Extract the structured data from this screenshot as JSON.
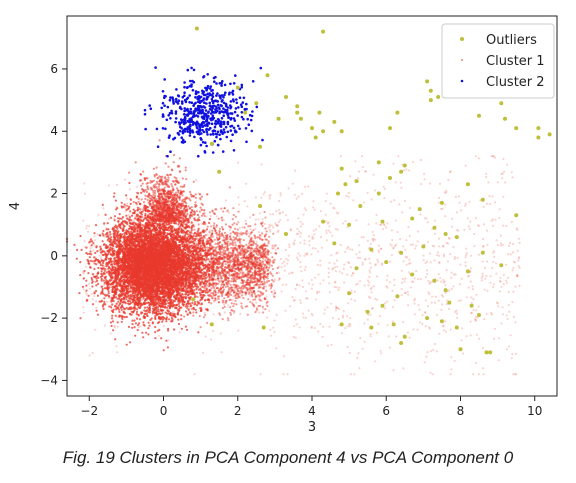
{
  "caption": "Fig. 19 Clusters in PCA Component 4 vs PCA Component 0",
  "chart_data": {
    "type": "scatter",
    "title": "",
    "xlabel": "3",
    "ylabel": "4",
    "xlim": [
      -2.6,
      10.6
    ],
    "ylim": [
      -4.5,
      7.7
    ],
    "xticks": [
      -2,
      0,
      2,
      4,
      6,
      8,
      10
    ],
    "yticks": [
      -4,
      -2,
      0,
      2,
      4,
      6
    ],
    "grid": false,
    "legend_position": "top-right",
    "series": [
      {
        "name": "Outliers",
        "color": "#bfbf3a",
        "marker": "dot",
        "points": [
          [
            0.9,
            7.3
          ],
          [
            4.3,
            7.2
          ],
          [
            2.8,
            5.8
          ],
          [
            7.1,
            5.6
          ],
          [
            7.2,
            5.3
          ],
          [
            7.2,
            5.0
          ],
          [
            7.4,
            5.1
          ],
          [
            8.5,
            4.5
          ],
          [
            9.1,
            4.9
          ],
          [
            9.2,
            4.4
          ],
          [
            9.5,
            4.1
          ],
          [
            10.1,
            4.1
          ],
          [
            10.1,
            3.8
          ],
          [
            10.4,
            3.9
          ],
          [
            3.3,
            5.1
          ],
          [
            3.6,
            4.8
          ],
          [
            3.1,
            4.4
          ],
          [
            3.6,
            4.6
          ],
          [
            3.7,
            4.4
          ],
          [
            4.2,
            4.6
          ],
          [
            4.0,
            4.1
          ],
          [
            4.3,
            4.0
          ],
          [
            4.6,
            4.3
          ],
          [
            4.8,
            4.0
          ],
          [
            4.1,
            3.8
          ],
          [
            6.1,
            4.1
          ],
          [
            6.3,
            4.6
          ],
          [
            2.2,
            4.6
          ],
          [
            2.5,
            4.9
          ],
          [
            2.0,
            5.4
          ],
          [
            1.3,
            3.6
          ],
          [
            1.5,
            2.7
          ],
          [
            2.6,
            3.5
          ],
          [
            4.8,
            2.8
          ],
          [
            5.2,
            2.4
          ],
          [
            5.8,
            3.0
          ],
          [
            6.5,
            2.9
          ],
          [
            4.9,
            2.3
          ],
          [
            6.1,
            2.5
          ],
          [
            6.4,
            2.7
          ],
          [
            4.7,
            2.0
          ],
          [
            5.3,
            1.6
          ],
          [
            5.8,
            2.0
          ],
          [
            6.9,
            1.5
          ],
          [
            7.5,
            1.7
          ],
          [
            8.6,
            1.8
          ],
          [
            9.5,
            1.3
          ],
          [
            4.3,
            1.1
          ],
          [
            5.0,
            1.0
          ],
          [
            5.9,
            1.1
          ],
          [
            6.7,
            1.2
          ],
          [
            7.3,
            0.9
          ],
          [
            7.6,
            0.7
          ],
          [
            4.6,
            0.4
          ],
          [
            5.6,
            0.2
          ],
          [
            6.4,
            0.1
          ],
          [
            7.0,
            0.3
          ],
          [
            7.9,
            0.6
          ],
          [
            8.6,
            0.1
          ],
          [
            5.2,
            -0.4
          ],
          [
            6.0,
            -0.2
          ],
          [
            6.7,
            -0.6
          ],
          [
            7.3,
            -0.8
          ],
          [
            8.2,
            -0.5
          ],
          [
            9.1,
            -0.3
          ],
          [
            5.0,
            -1.2
          ],
          [
            6.3,
            -1.3
          ],
          [
            7.6,
            -1.1
          ],
          [
            8.3,
            -1.6
          ],
          [
            7.7,
            -1.5
          ],
          [
            5.5,
            -1.8
          ],
          [
            5.9,
            -1.6
          ],
          [
            7.1,
            -2.0
          ],
          [
            7.5,
            -2.1
          ],
          [
            8.5,
            -1.9
          ],
          [
            4.8,
            -2.2
          ],
          [
            5.6,
            -2.3
          ],
          [
            6.2,
            -2.2
          ],
          [
            7.9,
            -2.3
          ],
          [
            6.5,
            -2.6
          ],
          [
            6.4,
            -2.8
          ],
          [
            8.0,
            -3.0
          ],
          [
            8.7,
            -3.1
          ],
          [
            8.8,
            -3.1
          ],
          [
            2.7,
            -2.3
          ],
          [
            1.3,
            -2.2
          ],
          [
            0.8,
            -1.4
          ],
          [
            3.3,
            0.7
          ],
          [
            2.6,
            1.6
          ],
          [
            8.2,
            2.3
          ]
        ]
      },
      {
        "name": "Cluster 1",
        "color": "#e8392e",
        "marker": "small-dot",
        "core": {
          "count": 7000,
          "center": [
            -0.3,
            -0.3
          ],
          "spread_x": 0.65,
          "spread_y": 0.75
        },
        "right_tail": {
          "count": 1800,
          "from_x": 0.5,
          "to_x": 2.8,
          "y_mean": -0.3,
          "y_spread": 0.8
        },
        "upper_spike": {
          "count": 900,
          "center": [
            0.1,
            1.5
          ],
          "spread_x": 0.35,
          "spread_y": 0.7
        },
        "halo": {
          "count": 1500,
          "x_range": [
            -2.2,
            9.6
          ],
          "y_range": [
            -3.8,
            3.2
          ]
        }
      },
      {
        "name": "Cluster 2",
        "color": "#1010e0",
        "marker": "dot",
        "count": 520,
        "center": [
          1.1,
          4.6
        ],
        "spread_x": 0.55,
        "spread_y": 0.55,
        "x_range": [
          -0.5,
          4.2
        ],
        "y_range": [
          3.2,
          6.3
        ]
      }
    ]
  }
}
